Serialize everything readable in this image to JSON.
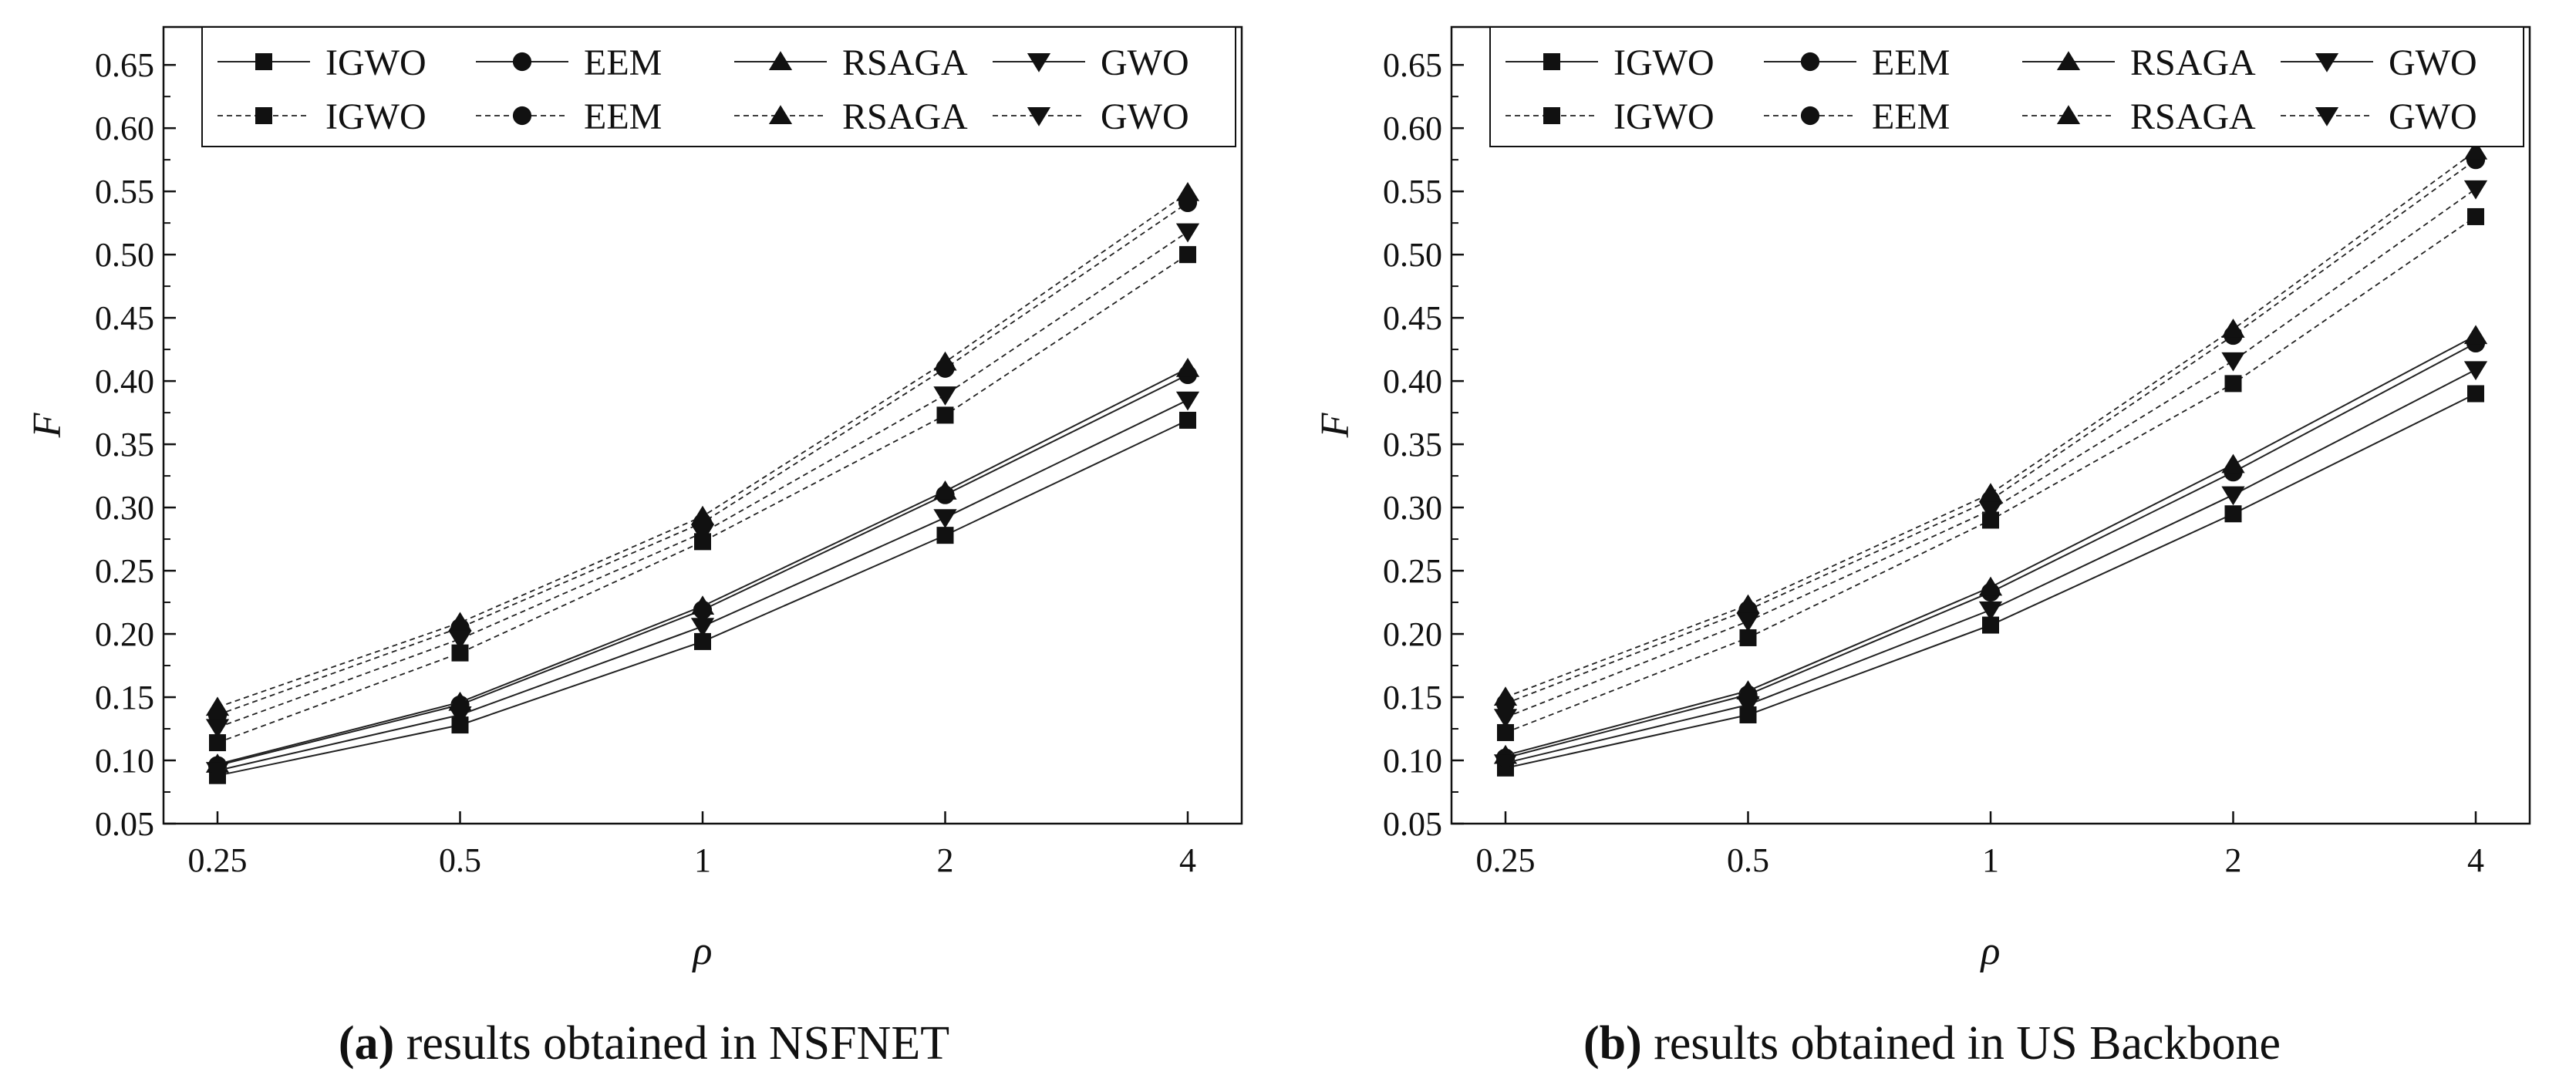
{
  "chart_data": [
    {
      "type": "line",
      "panel_label": "a",
      "caption": "results obtained in NSFNET",
      "xlabel": "ρ",
      "ylabel": "F",
      "categories": [
        "0.25",
        "0.5",
        "1",
        "2",
        "4"
      ],
      "ylim": [
        0.05,
        0.68
      ],
      "yticks": [
        "0.05",
        "0.10",
        "0.15",
        "0.20",
        "0.25",
        "0.30",
        "0.35",
        "0.40",
        "0.45",
        "0.50",
        "0.55",
        "0.60",
        "0.65"
      ],
      "legend_position": "top",
      "series": [
        {
          "name": "IGWO",
          "style": "solid",
          "marker": "square",
          "values": [
            0.088,
            0.128,
            0.194,
            0.278,
            0.369
          ]
        },
        {
          "name": "EEM",
          "style": "solid",
          "marker": "circle",
          "values": [
            0.096,
            0.144,
            0.219,
            0.31,
            0.405
          ]
        },
        {
          "name": "RSAGA",
          "style": "solid",
          "marker": "triangle-up",
          "values": [
            0.097,
            0.146,
            0.222,
            0.313,
            0.41
          ]
        },
        {
          "name": "GWO",
          "style": "solid",
          "marker": "triangle-down",
          "values": [
            0.092,
            0.136,
            0.206,
            0.292,
            0.385
          ]
        },
        {
          "name": "IGWO",
          "style": "dashed",
          "marker": "square",
          "values": [
            0.114,
            0.185,
            0.273,
            0.373,
            0.5
          ]
        },
        {
          "name": "EEM",
          "style": "dashed",
          "marker": "circle",
          "values": [
            0.136,
            0.205,
            0.288,
            0.41,
            0.541
          ]
        },
        {
          "name": "RSAGA",
          "style": "dashed",
          "marker": "triangle-up",
          "values": [
            0.142,
            0.209,
            0.293,
            0.415,
            0.549
          ]
        },
        {
          "name": "GWO",
          "style": "dashed",
          "marker": "triangle-down",
          "values": [
            0.126,
            0.196,
            0.28,
            0.389,
            0.518
          ]
        }
      ]
    },
    {
      "type": "line",
      "panel_label": "b",
      "caption": "results obtained in US Backbone",
      "xlabel": "ρ",
      "ylabel": "F",
      "categories": [
        "0.25",
        "0.5",
        "1",
        "2",
        "4"
      ],
      "ylim": [
        0.05,
        0.68
      ],
      "yticks": [
        "0.05",
        "0.10",
        "0.15",
        "0.20",
        "0.25",
        "0.30",
        "0.35",
        "0.40",
        "0.45",
        "0.50",
        "0.55",
        "0.60",
        "0.65"
      ],
      "legend_position": "top",
      "series": [
        {
          "name": "IGWO",
          "style": "solid",
          "marker": "square",
          "values": [
            0.094,
            0.136,
            0.207,
            0.295,
            0.39
          ]
        },
        {
          "name": "EEM",
          "style": "solid",
          "marker": "circle",
          "values": [
            0.102,
            0.152,
            0.233,
            0.328,
            0.43
          ]
        },
        {
          "name": "RSAGA",
          "style": "solid",
          "marker": "triangle-up",
          "values": [
            0.104,
            0.155,
            0.237,
            0.334,
            0.436
          ]
        },
        {
          "name": "GWO",
          "style": "solid",
          "marker": "triangle-down",
          "values": [
            0.098,
            0.144,
            0.219,
            0.31,
            0.409
          ]
        },
        {
          "name": "IGWO",
          "style": "dashed",
          "marker": "square",
          "values": [
            0.122,
            0.197,
            0.29,
            0.398,
            0.53
          ]
        },
        {
          "name": "EEM",
          "style": "dashed",
          "marker": "circle",
          "values": [
            0.145,
            0.219,
            0.306,
            0.436,
            0.575
          ]
        },
        {
          "name": "RSAGA",
          "style": "dashed",
          "marker": "triangle-up",
          "values": [
            0.15,
            0.223,
            0.311,
            0.441,
            0.582
          ]
        },
        {
          "name": "GWO",
          "style": "dashed",
          "marker": "triangle-down",
          "values": [
            0.134,
            0.21,
            0.298,
            0.416,
            0.552
          ]
        }
      ]
    }
  ]
}
